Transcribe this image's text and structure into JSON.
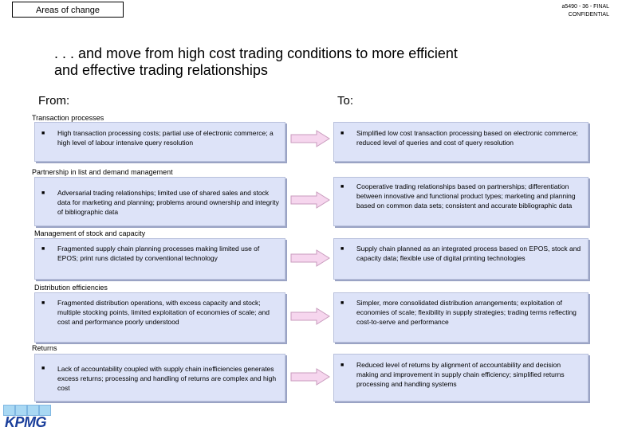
{
  "header": {
    "tag": "Areas of change",
    "ref_line1": "a5490 - 36 - FINAL",
    "ref_line2": "CONFIDENTIAL"
  },
  "title": {
    "line1": ". . . and move from high cost trading conditions to more efficient",
    "line2": "and effective trading relationships"
  },
  "columns": {
    "from": "From:",
    "to": "To:"
  },
  "bullet": "■",
  "sections": [
    {
      "label": "Transaction processes",
      "from": "High transaction processing costs; partial use of electronic commerce; a high level of labour intensive query resolution",
      "to": "Simplified low cost transaction processing based on electronic commerce; reduced level of queries and cost of query resolution"
    },
    {
      "label": "Partnership in list and demand management",
      "from": "Adversarial trading relationships; limited use of shared sales and stock data for marketing and planning; problems around ownership and integrity of bibliographic data",
      "to": "Cooperative trading relationships based on partnerships; differentiation between innovative and functional product types; marketing and planning based on common data sets; consistent and accurate bibliographic data"
    },
    {
      "label": "Management of stock and capacity",
      "from": "Fragmented supply chain planning processes making limited use of EPOS; print runs dictated by conventional technology",
      "to": "Supply chain planned as an integrated process based on EPOS, stock and capacity data; flexible use of digital printing technologies"
    },
    {
      "label": "Distribution efficiencies",
      "from": "Fragmented distribution operations, with excess capacity and stock; multiple stocking points, limited exploitation of economies of scale; and cost and performance poorly understood",
      "to": "Simpler, more consolidated distribution arrangements; exploitation of economies of scale; flexibility in supply strategies; trading terms reflecting cost-to-serve and performance"
    },
    {
      "label": "Returns",
      "from": "Lack of accountability coupled with supply chain inefficiencies generates excess returns; processing and handling of returns are complex and high cost",
      "to": "Reduced level of returns by alignment of accountability and decision making and improvement in supply chain efficiency; simplified returns processing and handling systems"
    }
  ],
  "logo": {
    "text": "KPMG"
  },
  "colors": {
    "box_fill": "#dde3f8",
    "arrow_fill": "#f6d6ee",
    "logo_blue": "#1b3f9b"
  }
}
